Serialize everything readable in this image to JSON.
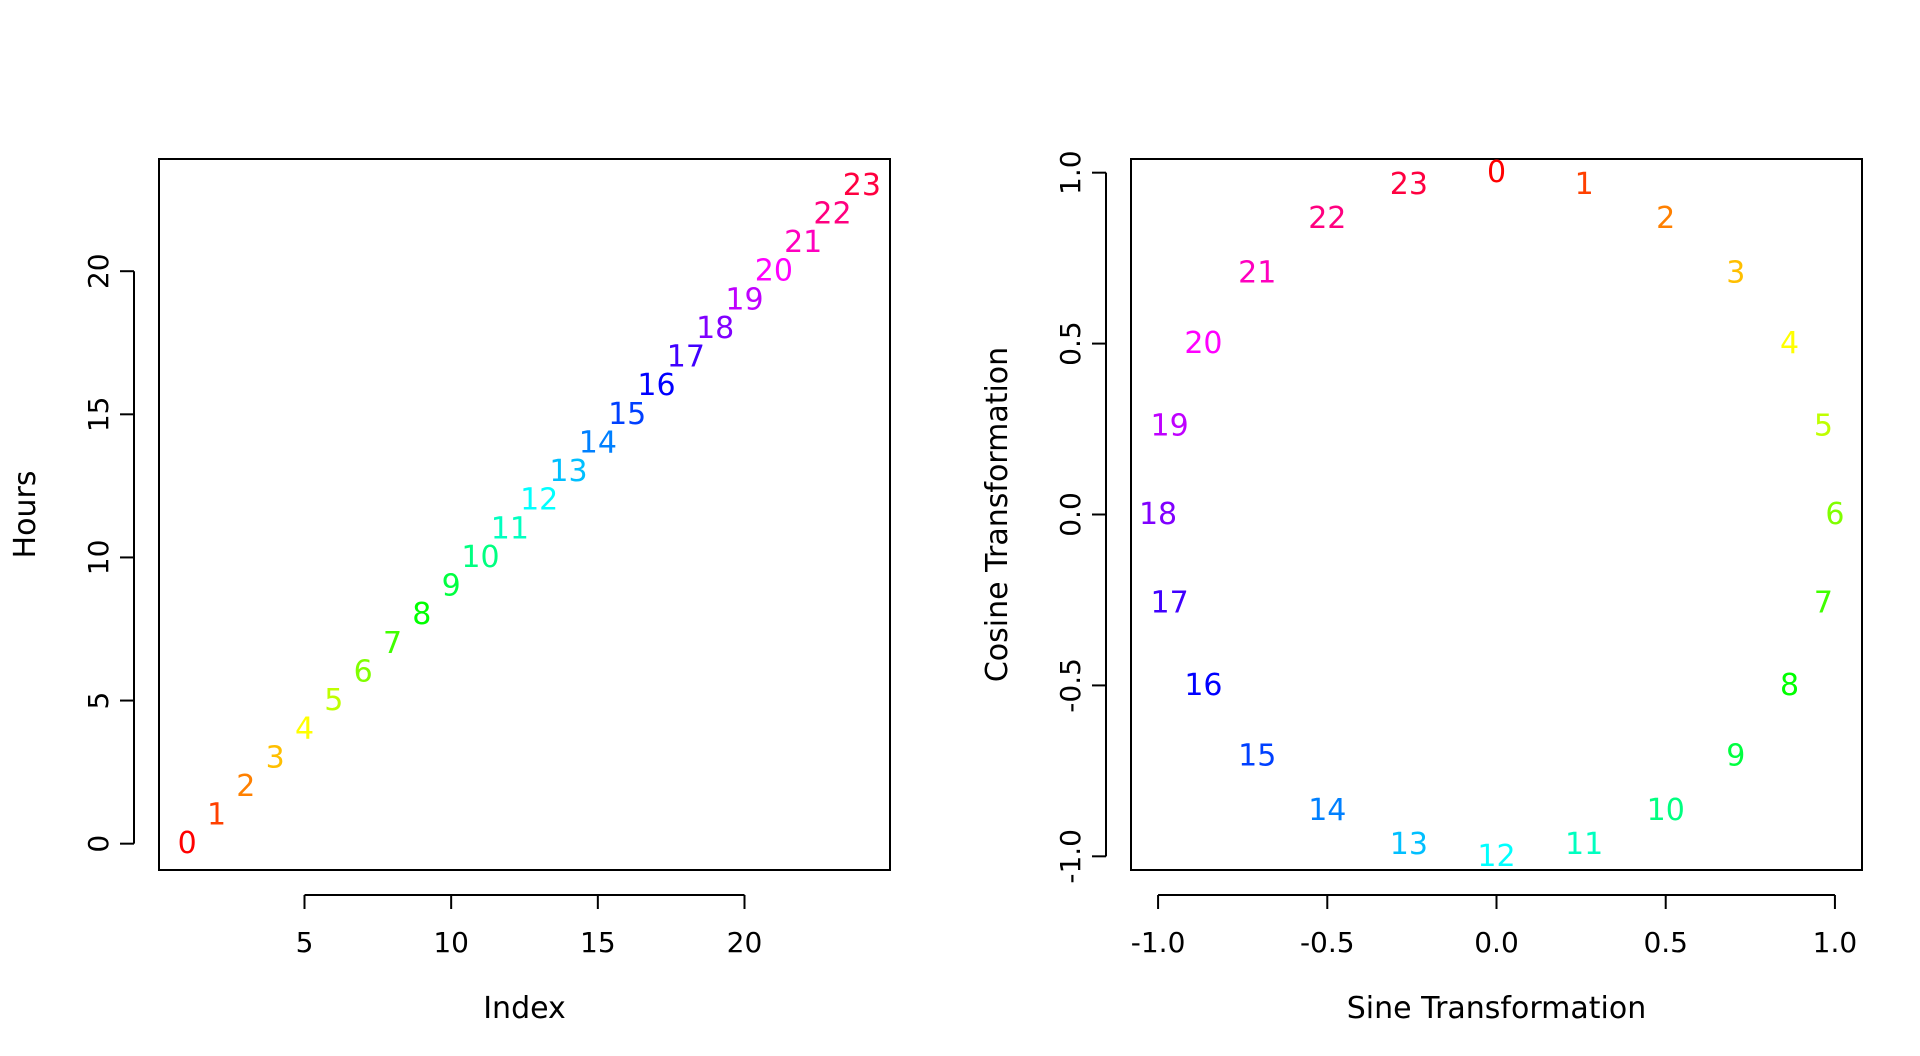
{
  "chart_data": [
    {
      "type": "scatter",
      "marker": "text",
      "xlabel": "Index",
      "ylabel": "Hours",
      "xlim": [
        0.04,
        24.96
      ],
      "ylim": [
        -0.92,
        23.92
      ],
      "xticks": [
        5,
        10,
        15,
        20
      ],
      "xtick_labels": [
        "5",
        "10",
        "15",
        "20"
      ],
      "yticks": [
        0,
        5,
        10,
        15,
        20
      ],
      "ytick_labels": [
        "0",
        "5",
        "10",
        "15",
        "20"
      ],
      "points": [
        {
          "x": 1,
          "y": 0,
          "label": "0"
        },
        {
          "x": 2,
          "y": 1,
          "label": "1"
        },
        {
          "x": 3,
          "y": 2,
          "label": "2"
        },
        {
          "x": 4,
          "y": 3,
          "label": "3"
        },
        {
          "x": 5,
          "y": 4,
          "label": "4"
        },
        {
          "x": 6,
          "y": 5,
          "label": "5"
        },
        {
          "x": 7,
          "y": 6,
          "label": "6"
        },
        {
          "x": 8,
          "y": 7,
          "label": "7"
        },
        {
          "x": 9,
          "y": 8,
          "label": "8"
        },
        {
          "x": 10,
          "y": 9,
          "label": "9"
        },
        {
          "x": 11,
          "y": 10,
          "label": "10"
        },
        {
          "x": 12,
          "y": 11,
          "label": "11"
        },
        {
          "x": 13,
          "y": 12,
          "label": "12"
        },
        {
          "x": 14,
          "y": 13,
          "label": "13"
        },
        {
          "x": 15,
          "y": 14,
          "label": "14"
        },
        {
          "x": 16,
          "y": 15,
          "label": "15"
        },
        {
          "x": 17,
          "y": 16,
          "label": "16"
        },
        {
          "x": 18,
          "y": 17,
          "label": "17"
        },
        {
          "x": 19,
          "y": 18,
          "label": "18"
        },
        {
          "x": 20,
          "y": 19,
          "label": "19"
        },
        {
          "x": 21,
          "y": 20,
          "label": "20"
        },
        {
          "x": 22,
          "y": 21,
          "label": "21"
        },
        {
          "x": 23,
          "y": 22,
          "label": "22"
        },
        {
          "x": 24,
          "y": 23,
          "label": "23"
        }
      ]
    },
    {
      "type": "scatter",
      "marker": "text",
      "xlabel": "Sine Transformation",
      "ylabel": "Cosine Transformation",
      "xlim": [
        -1.08,
        1.08
      ],
      "ylim": [
        -1.04,
        1.04
      ],
      "xticks": [
        -1.0,
        -0.5,
        0.0,
        0.5,
        1.0
      ],
      "xtick_labels": [
        "-1.0",
        "-0.5",
        "0.0",
        "0.5",
        "1.0"
      ],
      "yticks": [
        -1.0,
        -0.5,
        0.0,
        0.5,
        1.0
      ],
      "ytick_labels": [
        "-1.0",
        "-0.5",
        "0.0",
        "0.5",
        "1.0"
      ],
      "points": [
        {
          "x": 0.0,
          "y": 1.0,
          "label": "0"
        },
        {
          "x": 0.259,
          "y": 0.966,
          "label": "1"
        },
        {
          "x": 0.5,
          "y": 0.866,
          "label": "2"
        },
        {
          "x": 0.707,
          "y": 0.707,
          "label": "3"
        },
        {
          "x": 0.866,
          "y": 0.5,
          "label": "4"
        },
        {
          "x": 0.966,
          "y": 0.259,
          "label": "5"
        },
        {
          "x": 1.0,
          "y": 0.0,
          "label": "6"
        },
        {
          "x": 0.966,
          "y": -0.259,
          "label": "7"
        },
        {
          "x": 0.866,
          "y": -0.5,
          "label": "8"
        },
        {
          "x": 0.707,
          "y": -0.707,
          "label": "9"
        },
        {
          "x": 0.5,
          "y": -0.866,
          "label": "10"
        },
        {
          "x": 0.259,
          "y": -0.966,
          "label": "11"
        },
        {
          "x": 0.0,
          "y": -1.0,
          "label": "12"
        },
        {
          "x": -0.259,
          "y": -0.966,
          "label": "13"
        },
        {
          "x": -0.5,
          "y": -0.866,
          "label": "14"
        },
        {
          "x": -0.707,
          "y": -0.707,
          "label": "15"
        },
        {
          "x": -0.866,
          "y": -0.5,
          "label": "16"
        },
        {
          "x": -0.966,
          "y": -0.259,
          "label": "17"
        },
        {
          "x": -1.0,
          "y": 0.0,
          "label": "18"
        },
        {
          "x": -0.966,
          "y": 0.259,
          "label": "19"
        },
        {
          "x": -0.866,
          "y": 0.5,
          "label": "20"
        },
        {
          "x": -0.707,
          "y": 0.707,
          "label": "21"
        },
        {
          "x": -0.5,
          "y": 0.866,
          "label": "22"
        },
        {
          "x": -0.259,
          "y": 0.966,
          "label": "23"
        }
      ]
    }
  ],
  "colors": [
    "#FF0000",
    "#FF4000",
    "#FF8000",
    "#FFBF00",
    "#FFFF00",
    "#BFFF00",
    "#80FF00",
    "#40FF00",
    "#00FF00",
    "#00FF40",
    "#00FF80",
    "#00FFBF",
    "#00FFFF",
    "#00BFFF",
    "#0080FF",
    "#0040FF",
    "#0000FF",
    "#4000FF",
    "#8000FF",
    "#BF00FF",
    "#FF00FF",
    "#FF00BF",
    "#FF0080",
    "#FF0040"
  ]
}
